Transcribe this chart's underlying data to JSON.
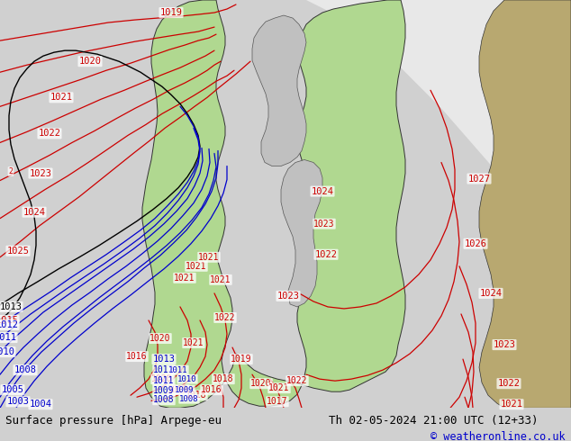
{
  "title_left": "Surface pressure [hPa] Arpege-eu",
  "title_right": "Th 02-05-2024 21:00 UTC (12+33)",
  "credit": "© weatheronline.co.uk",
  "bg_color": "#d0d0d0",
  "map_bg_green": "#b0d890",
  "sea_color": "#c8c8c8",
  "land_color_right": "#b8a878",
  "fig_width": 6.34,
  "fig_height": 4.9,
  "dpi": 100,
  "bottom_bar_height": 0.075,
  "bottom_bar_color": "#d8d8d8",
  "title_font_size": 9.0,
  "credit_font_size": 8.5,
  "title_color": "#000000",
  "credit_color": "#0000cc",
  "red": "#cc0000",
  "blue": "#0000cc",
  "black": "#000000"
}
